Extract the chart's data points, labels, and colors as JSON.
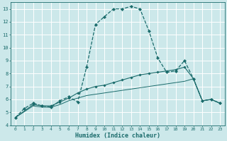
{
  "xlabel": "Humidex (Indice chaleur)",
  "xlim": [
    -0.5,
    23.5
  ],
  "ylim": [
    4,
    13.5
  ],
  "yticks": [
    4,
    5,
    6,
    7,
    8,
    9,
    10,
    11,
    12,
    13
  ],
  "xticks": [
    0,
    1,
    2,
    3,
    4,
    5,
    6,
    7,
    8,
    9,
    10,
    11,
    12,
    13,
    14,
    15,
    16,
    17,
    18,
    19,
    20,
    21,
    22,
    23
  ],
  "bg_color": "#cce8ea",
  "line_color": "#1a6b6b",
  "grid_color": "#ffffff",
  "line1_x": [
    0,
    1,
    2,
    3,
    4,
    5,
    6,
    7,
    8,
    9,
    10,
    11,
    12,
    13,
    14,
    15,
    16,
    17,
    18,
    19,
    20,
    21,
    22,
    23
  ],
  "line1_y": [
    4.6,
    5.3,
    5.7,
    5.5,
    5.4,
    5.9,
    6.2,
    5.8,
    8.5,
    11.8,
    12.4,
    13.0,
    13.0,
    13.2,
    13.0,
    11.3,
    9.2,
    8.1,
    8.2,
    9.0,
    7.6,
    5.9,
    6.0,
    5.7
  ],
  "line2_x": [
    0,
    2,
    3,
    4,
    5,
    6,
    7,
    8,
    9,
    10,
    11,
    12,
    13,
    14,
    15,
    16,
    17,
    18,
    19,
    20,
    21,
    22,
    23
  ],
  "line2_y": [
    4.6,
    5.6,
    5.5,
    5.5,
    5.8,
    6.1,
    6.5,
    6.8,
    7.0,
    7.1,
    7.3,
    7.5,
    7.7,
    7.9,
    8.0,
    8.1,
    8.2,
    8.3,
    8.5,
    7.6,
    5.9,
    6.0,
    5.7
  ],
  "line3_x": [
    0,
    2,
    3,
    4,
    5,
    6,
    7,
    8,
    9,
    10,
    11,
    12,
    13,
    14,
    15,
    16,
    17,
    18,
    19,
    20,
    21,
    22,
    23
  ],
  "line3_y": [
    4.6,
    5.5,
    5.4,
    5.4,
    5.6,
    5.9,
    6.1,
    6.3,
    6.4,
    6.5,
    6.6,
    6.7,
    6.8,
    6.9,
    7.0,
    7.1,
    7.2,
    7.3,
    7.4,
    7.6,
    5.9,
    6.0,
    5.7
  ]
}
